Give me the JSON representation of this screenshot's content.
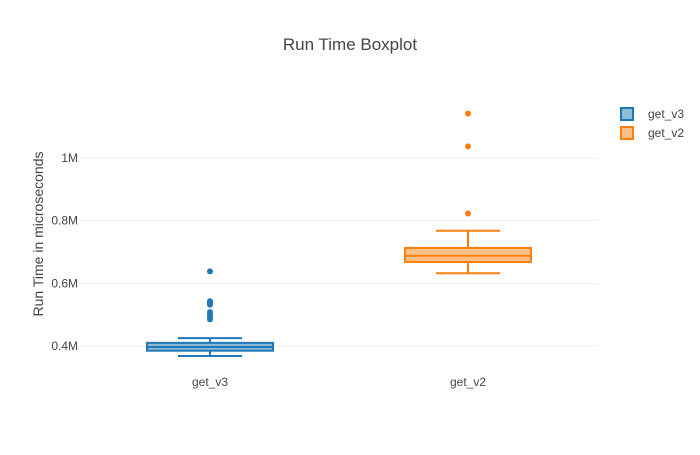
{
  "chart_data": {
    "type": "box",
    "title": "Run Time Boxplot",
    "xlabel": "",
    "ylabel": "Run Time in microseconds",
    "ylim": [
      340000,
      1170000
    ],
    "y_ticks": [
      {
        "value": 400000,
        "label": "0.4M"
      },
      {
        "value": 600000,
        "label": "0.6M"
      },
      {
        "value": 800000,
        "label": "0.8M"
      },
      {
        "value": 1000000,
        "label": "1M"
      }
    ],
    "grid": true,
    "legend_position": "top-right",
    "categories": [
      "get_v3",
      "get_v2"
    ],
    "series": [
      {
        "name": "get_v3",
        "color": "#1f77b4",
        "whisker_low": 368000,
        "q1": 385000,
        "median": 397000,
        "q3": 410000,
        "whisker_high": 425000,
        "outliers": [
          485000,
          495000,
          500000,
          508000,
          532000,
          538000,
          543000,
          638000
        ]
      },
      {
        "name": "get_v2",
        "color": "#ff7f0e",
        "whisker_low": 632000,
        "q1": 668000,
        "median": 688000,
        "q3": 713000,
        "whisker_high": 768000,
        "outliers": [
          823000,
          1037000,
          1142000
        ]
      }
    ]
  }
}
